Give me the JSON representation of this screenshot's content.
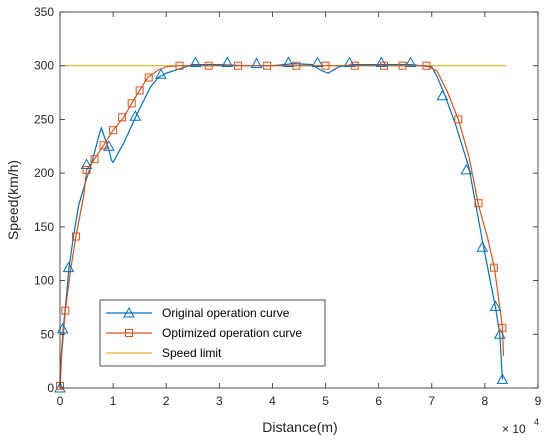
{
  "chart_data": {
    "type": "line",
    "xlabel": "Distance(m)",
    "ylabel": "Speed(km/h)",
    "x_exponent_label": "× 10",
    "x_exponent_power": "4",
    "xlim": [
      0,
      9
    ],
    "ylim": [
      0,
      350
    ],
    "xticks": [
      "0",
      "1",
      "2",
      "3",
      "4",
      "5",
      "6",
      "7",
      "8",
      "9"
    ],
    "yticks": [
      "0",
      "50",
      "100",
      "150",
      "200",
      "250",
      "300",
      "350"
    ],
    "grid": false,
    "legend_position": "bottom-left",
    "colors": {
      "original": "#0072BD",
      "optimized": "#D95319",
      "limit": "#EDB120",
      "axis": "#262626"
    },
    "series": [
      {
        "name": "Original operation curve",
        "marker": "triangle",
        "line": [
          [
            0,
            0
          ],
          [
            0.02,
            28
          ],
          [
            0.06,
            55
          ],
          [
            0.12,
            85
          ],
          [
            0.17,
            112
          ],
          [
            0.25,
            140
          ],
          [
            0.35,
            170
          ],
          [
            0.5,
            195
          ],
          [
            0.6,
            210
          ],
          [
            0.75,
            238
          ],
          [
            0.78,
            242
          ],
          [
            0.85,
            232
          ],
          [
            0.92,
            222
          ],
          [
            0.97,
            212
          ],
          [
            1.0,
            210
          ],
          [
            1.2,
            228
          ],
          [
            1.45,
            255
          ],
          [
            1.7,
            280
          ],
          [
            1.85,
            289
          ],
          [
            2.0,
            293
          ],
          [
            2.5,
            301
          ],
          [
            3.0,
            301
          ],
          [
            3.5,
            300
          ],
          [
            4.0,
            300
          ],
          [
            4.4,
            302
          ],
          [
            4.75,
            301
          ],
          [
            4.9,
            296
          ],
          [
            5.05,
            293
          ],
          [
            5.25,
            299
          ],
          [
            5.5,
            301
          ],
          [
            6.0,
            301
          ],
          [
            6.6,
            301
          ],
          [
            7.0,
            299
          ],
          [
            7.1,
            290
          ],
          [
            7.25,
            272
          ],
          [
            7.45,
            245
          ],
          [
            7.7,
            205
          ],
          [
            7.95,
            138
          ],
          [
            8.1,
            100
          ],
          [
            8.2,
            75
          ],
          [
            8.28,
            50
          ],
          [
            8.33,
            8
          ]
        ],
        "markers": [
          [
            0,
            0
          ],
          [
            0.05,
            55
          ],
          [
            0.16,
            112
          ],
          [
            0.5,
            208
          ],
          [
            0.92,
            225
          ],
          [
            1.42,
            253
          ],
          [
            1.9,
            292
          ],
          [
            2.55,
            303
          ],
          [
            3.15,
            303
          ],
          [
            3.7,
            302
          ],
          [
            4.3,
            303
          ],
          [
            4.85,
            303
          ],
          [
            5.45,
            303
          ],
          [
            6.05,
            303
          ],
          [
            6.6,
            303
          ],
          [
            7.2,
            272
          ],
          [
            7.65,
            203
          ],
          [
            7.95,
            131
          ],
          [
            8.2,
            76
          ],
          [
            8.28,
            50
          ],
          [
            8.33,
            8
          ]
        ]
      },
      {
        "name": "Optimized operation curve",
        "marker": "square",
        "line": [
          [
            0,
            0
          ],
          [
            0.03,
            30
          ],
          [
            0.1,
            72
          ],
          [
            0.2,
            110
          ],
          [
            0.3,
            141
          ],
          [
            0.45,
            180
          ],
          [
            0.5,
            203
          ],
          [
            0.65,
            213
          ],
          [
            0.82,
            226
          ],
          [
            1.0,
            240
          ],
          [
            1.2,
            252
          ],
          [
            1.35,
            265
          ],
          [
            1.5,
            277
          ],
          [
            1.65,
            289
          ],
          [
            1.85,
            296
          ],
          [
            2.0,
            299
          ],
          [
            2.25,
            300
          ],
          [
            3.0,
            300
          ],
          [
            4.0,
            300
          ],
          [
            5.0,
            300
          ],
          [
            6.0,
            300
          ],
          [
            6.9,
            300
          ],
          [
            7.1,
            295
          ],
          [
            7.3,
            275
          ],
          [
            7.5,
            250
          ],
          [
            7.7,
            215
          ],
          [
            7.88,
            170
          ],
          [
            8.05,
            140
          ],
          [
            8.18,
            112
          ],
          [
            8.28,
            75
          ],
          [
            8.33,
            56
          ],
          [
            8.35,
            30
          ]
        ],
        "markers": [
          [
            0,
            2
          ],
          [
            0.1,
            72
          ],
          [
            0.3,
            141
          ],
          [
            0.5,
            203
          ],
          [
            0.65,
            213
          ],
          [
            0.82,
            226
          ],
          [
            1.0,
            240
          ],
          [
            1.17,
            252
          ],
          [
            1.35,
            265
          ],
          [
            1.5,
            277
          ],
          [
            1.67,
            289
          ],
          [
            2.25,
            300
          ],
          [
            2.8,
            300
          ],
          [
            3.35,
            300
          ],
          [
            3.9,
            300
          ],
          [
            4.45,
            300
          ],
          [
            5.0,
            300
          ],
          [
            5.55,
            300
          ],
          [
            6.1,
            300
          ],
          [
            6.45,
            300
          ],
          [
            6.9,
            300
          ],
          [
            7.5,
            250
          ],
          [
            7.88,
            172
          ],
          [
            8.17,
            112
          ],
          [
            8.33,
            56
          ]
        ]
      },
      {
        "name": "Speed limit",
        "marker": "none",
        "line": [
          [
            0,
            300
          ],
          [
            8.4,
            300
          ]
        ],
        "markers": []
      }
    ]
  }
}
